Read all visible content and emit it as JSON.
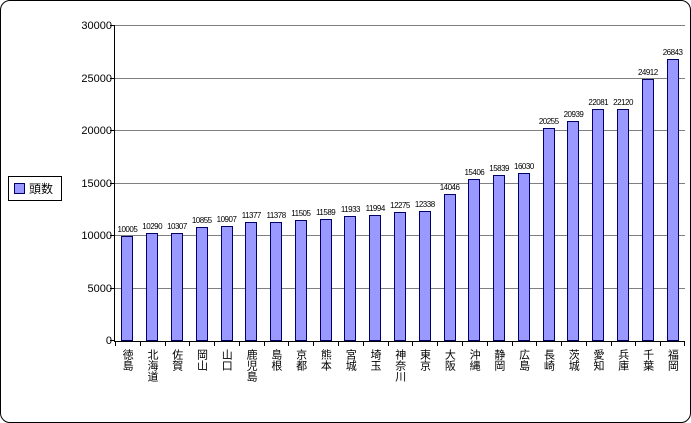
{
  "legend": {
    "label": "頭数"
  },
  "colors": {
    "bar_fill": "#9999ff",
    "bar_border": "#000066",
    "gridline": "#7f7f7f",
    "axis": "#000000",
    "background": "#ffffff"
  },
  "chart_data": {
    "type": "bar",
    "title": "",
    "xlabel": "",
    "ylabel": "",
    "series_name": "頭数",
    "categories": [
      "徳島",
      "北海道",
      "佐賀",
      "岡山",
      "山口",
      "鹿児島",
      "島根",
      "京都",
      "熊本",
      "宮城",
      "埼玉",
      "神奈川",
      "東京",
      "大阪",
      "沖縄",
      "静岡",
      "広島",
      "長崎",
      "茨城",
      "愛知",
      "兵庫",
      "千葉",
      "福岡"
    ],
    "values": [
      10005,
      10290,
      10307,
      10855,
      10907,
      11377,
      11378,
      11505,
      11589,
      11933,
      11994,
      12275,
      12338,
      14046,
      15406,
      15839,
      16030,
      20255,
      20939,
      22081,
      22120,
      24912,
      26843
    ],
    "ylim": [
      0,
      30000
    ],
    "y_ticks": [
      0,
      5000,
      10000,
      15000,
      20000,
      25000,
      30000
    ],
    "grid": true,
    "data_labels": true,
    "legend_position": "middle-left"
  }
}
